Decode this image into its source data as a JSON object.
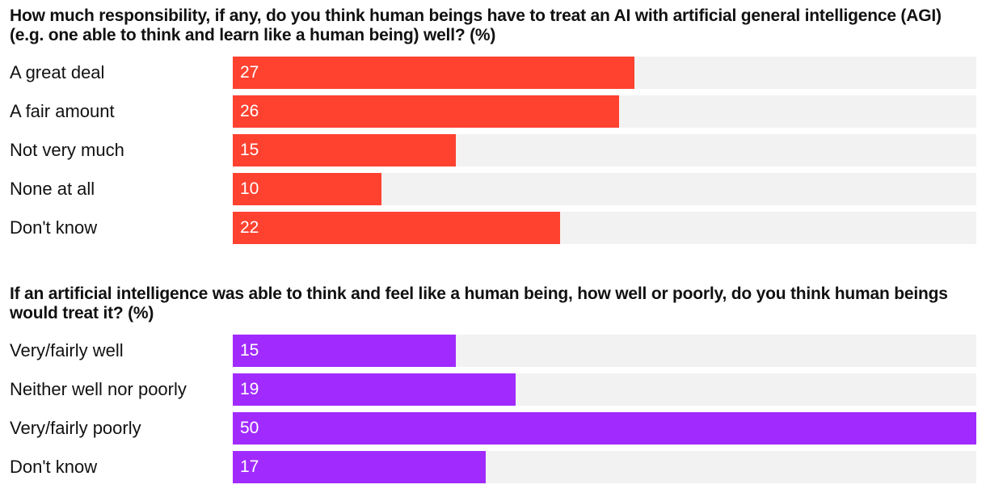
{
  "chart_data": [
    {
      "type": "bar",
      "orientation": "horizontal",
      "title": "How much responsibility, if any, do you think human beings have to treat an AI with artificial general intelligence (AGI) (e.g. one able to think and learn like a human being) well? (%)",
      "categories": [
        "A great deal",
        "A fair amount",
        "Not very much",
        "None at all",
        "Don't know"
      ],
      "values": [
        27,
        26,
        15,
        10,
        22
      ],
      "xlim": [
        0,
        50
      ],
      "color": "#ff4130",
      "grid": false,
      "legend": "none"
    },
    {
      "type": "bar",
      "orientation": "horizontal",
      "title": "If an artificial intelligence was able to think and feel like a human being, how well or poorly, do you think human beings would treat it? (%)",
      "categories": [
        "Very/fairly well",
        "Neither well nor poorly",
        "Very/fairly poorly",
        "Don't know"
      ],
      "values": [
        15,
        19,
        50,
        17
      ],
      "xlim": [
        0,
        50
      ],
      "color": "#a12bff",
      "grid": false,
      "legend": "none"
    }
  ]
}
